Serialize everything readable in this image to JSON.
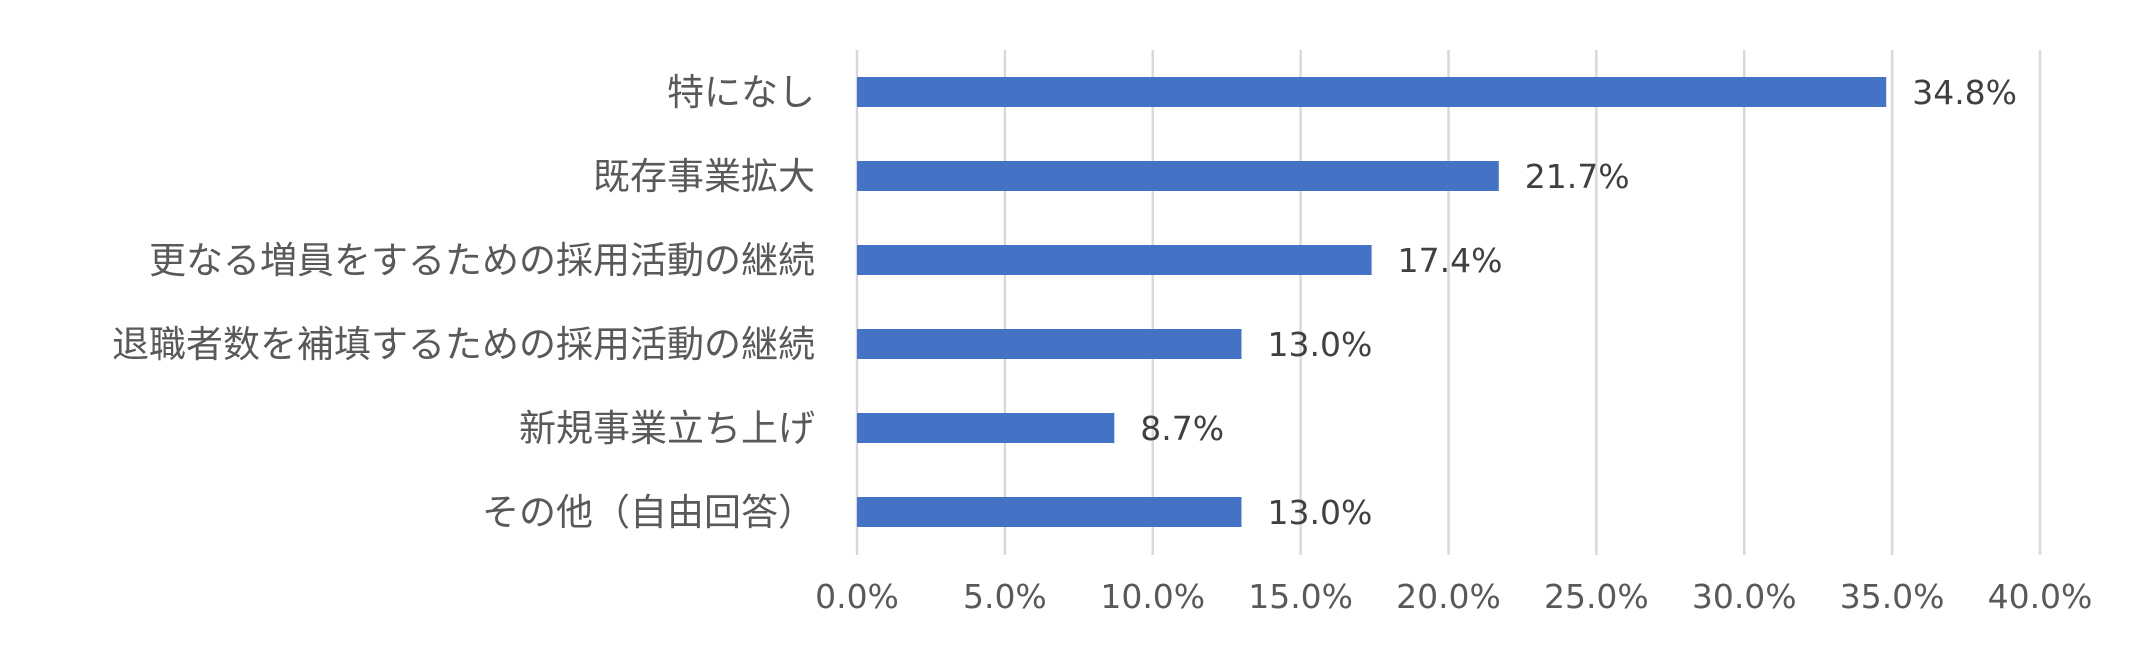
{
  "chart_data": {
    "type": "bar",
    "orientation": "horizontal",
    "categories": [
      "特になし",
      "既存事業拡大",
      "更なる増員をするための採用活動の継続",
      "退職者数を補填するための採用活動の継続",
      "新規事業立ち上げ",
      "その他（自由回答）"
    ],
    "values": [
      34.8,
      21.7,
      17.4,
      13.0,
      8.7,
      13.0
    ],
    "value_labels": [
      "34.8%",
      "21.7%",
      "17.4%",
      "13.0%",
      "8.7%",
      "13.0%"
    ],
    "x_ticks": [
      0,
      5,
      10,
      15,
      20,
      25,
      30,
      35,
      40
    ],
    "x_tick_labels": [
      "0.0%",
      "5.0%",
      "10.0%",
      "15.0%",
      "20.0%",
      "25.0%",
      "30.0%",
      "35.0%",
      "40.0%"
    ],
    "xlim": [
      0,
      40
    ],
    "title": "",
    "xlabel": "",
    "ylabel": "",
    "grid": "vertical",
    "legend": "none",
    "colors": {
      "bar": "#4472c4",
      "grid": "#d9d9d9",
      "label": "#595959",
      "data_label": "#404040"
    }
  }
}
